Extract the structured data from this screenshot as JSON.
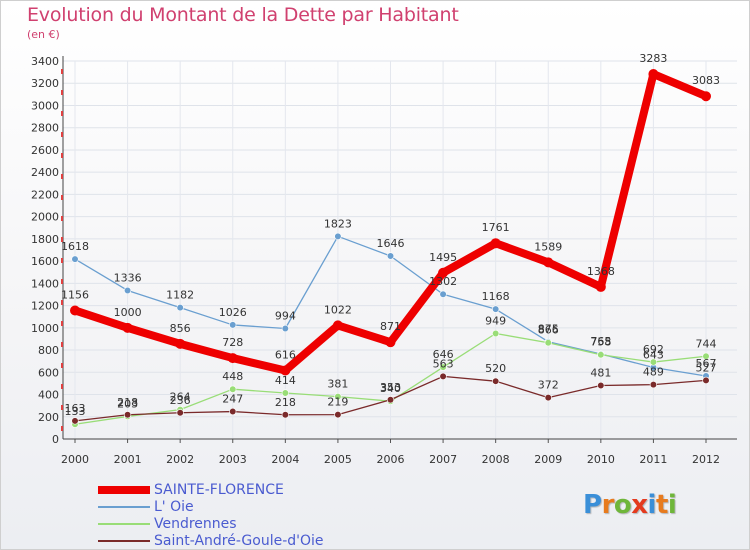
{
  "title": "Evolution du Montant de la Dette par Habitant",
  "subtitle": "(en €)",
  "logo": {
    "text": "Proxiti",
    "letters": [
      {
        "ch": "P",
        "color": "#3a8fd8"
      },
      {
        "ch": "r",
        "color": "#e77b1e"
      },
      {
        "ch": "o",
        "color": "#6fb63a"
      },
      {
        "ch": "x",
        "color": "#e43a1e"
      },
      {
        "ch": "i",
        "color": "#3a8fd8"
      },
      {
        "ch": "t",
        "color": "#e77b1e"
      },
      {
        "ch": "i",
        "color": "#6fb63a"
      }
    ]
  },
  "chart_data": {
    "type": "line",
    "title": "Evolution du Montant de la Dette par Habitant",
    "subtitle": "(en €)",
    "xlabel": "",
    "ylabel": "",
    "ylim": [
      0,
      3400
    ],
    "yticks": [
      0,
      200,
      400,
      600,
      800,
      1000,
      1200,
      1400,
      1600,
      1800,
      2000,
      2200,
      2400,
      2600,
      2800,
      3000,
      3200,
      3400
    ],
    "grid": true,
    "legend_position": "bottom-left",
    "x": [
      "2000",
      "2001",
      "2002",
      "2003",
      "2004",
      "2005",
      "2006",
      "2007",
      "2008",
      "2009",
      "2010",
      "2011",
      "2012"
    ],
    "series": [
      {
        "name": "SAINTE-FLORENCE",
        "color": "#ee0000",
        "values": [
          1156,
          1000,
          856,
          728,
          616,
          1022,
          871,
          1495,
          1761,
          1589,
          1368,
          3283,
          3083
        ]
      },
      {
        "name": "L' Oie",
        "color": "#6a9fd0",
        "values": [
          1618,
          1336,
          1182,
          1026,
          994,
          1823,
          1646,
          1302,
          1168,
          875,
          765,
          643,
          567
        ]
      },
      {
        "name": "Vendrennes",
        "color": "#99dd77",
        "values": [
          133,
          203,
          264,
          448,
          414,
          381,
          340,
          646,
          949,
          866,
          758,
          692,
          744
        ]
      },
      {
        "name": "Saint-André-Goule-d'Oie",
        "color": "#7a2a2a",
        "values": [
          163,
          218,
          236,
          247,
          218,
          219,
          353,
          563,
          520,
          372,
          481,
          489,
          527
        ]
      }
    ]
  }
}
